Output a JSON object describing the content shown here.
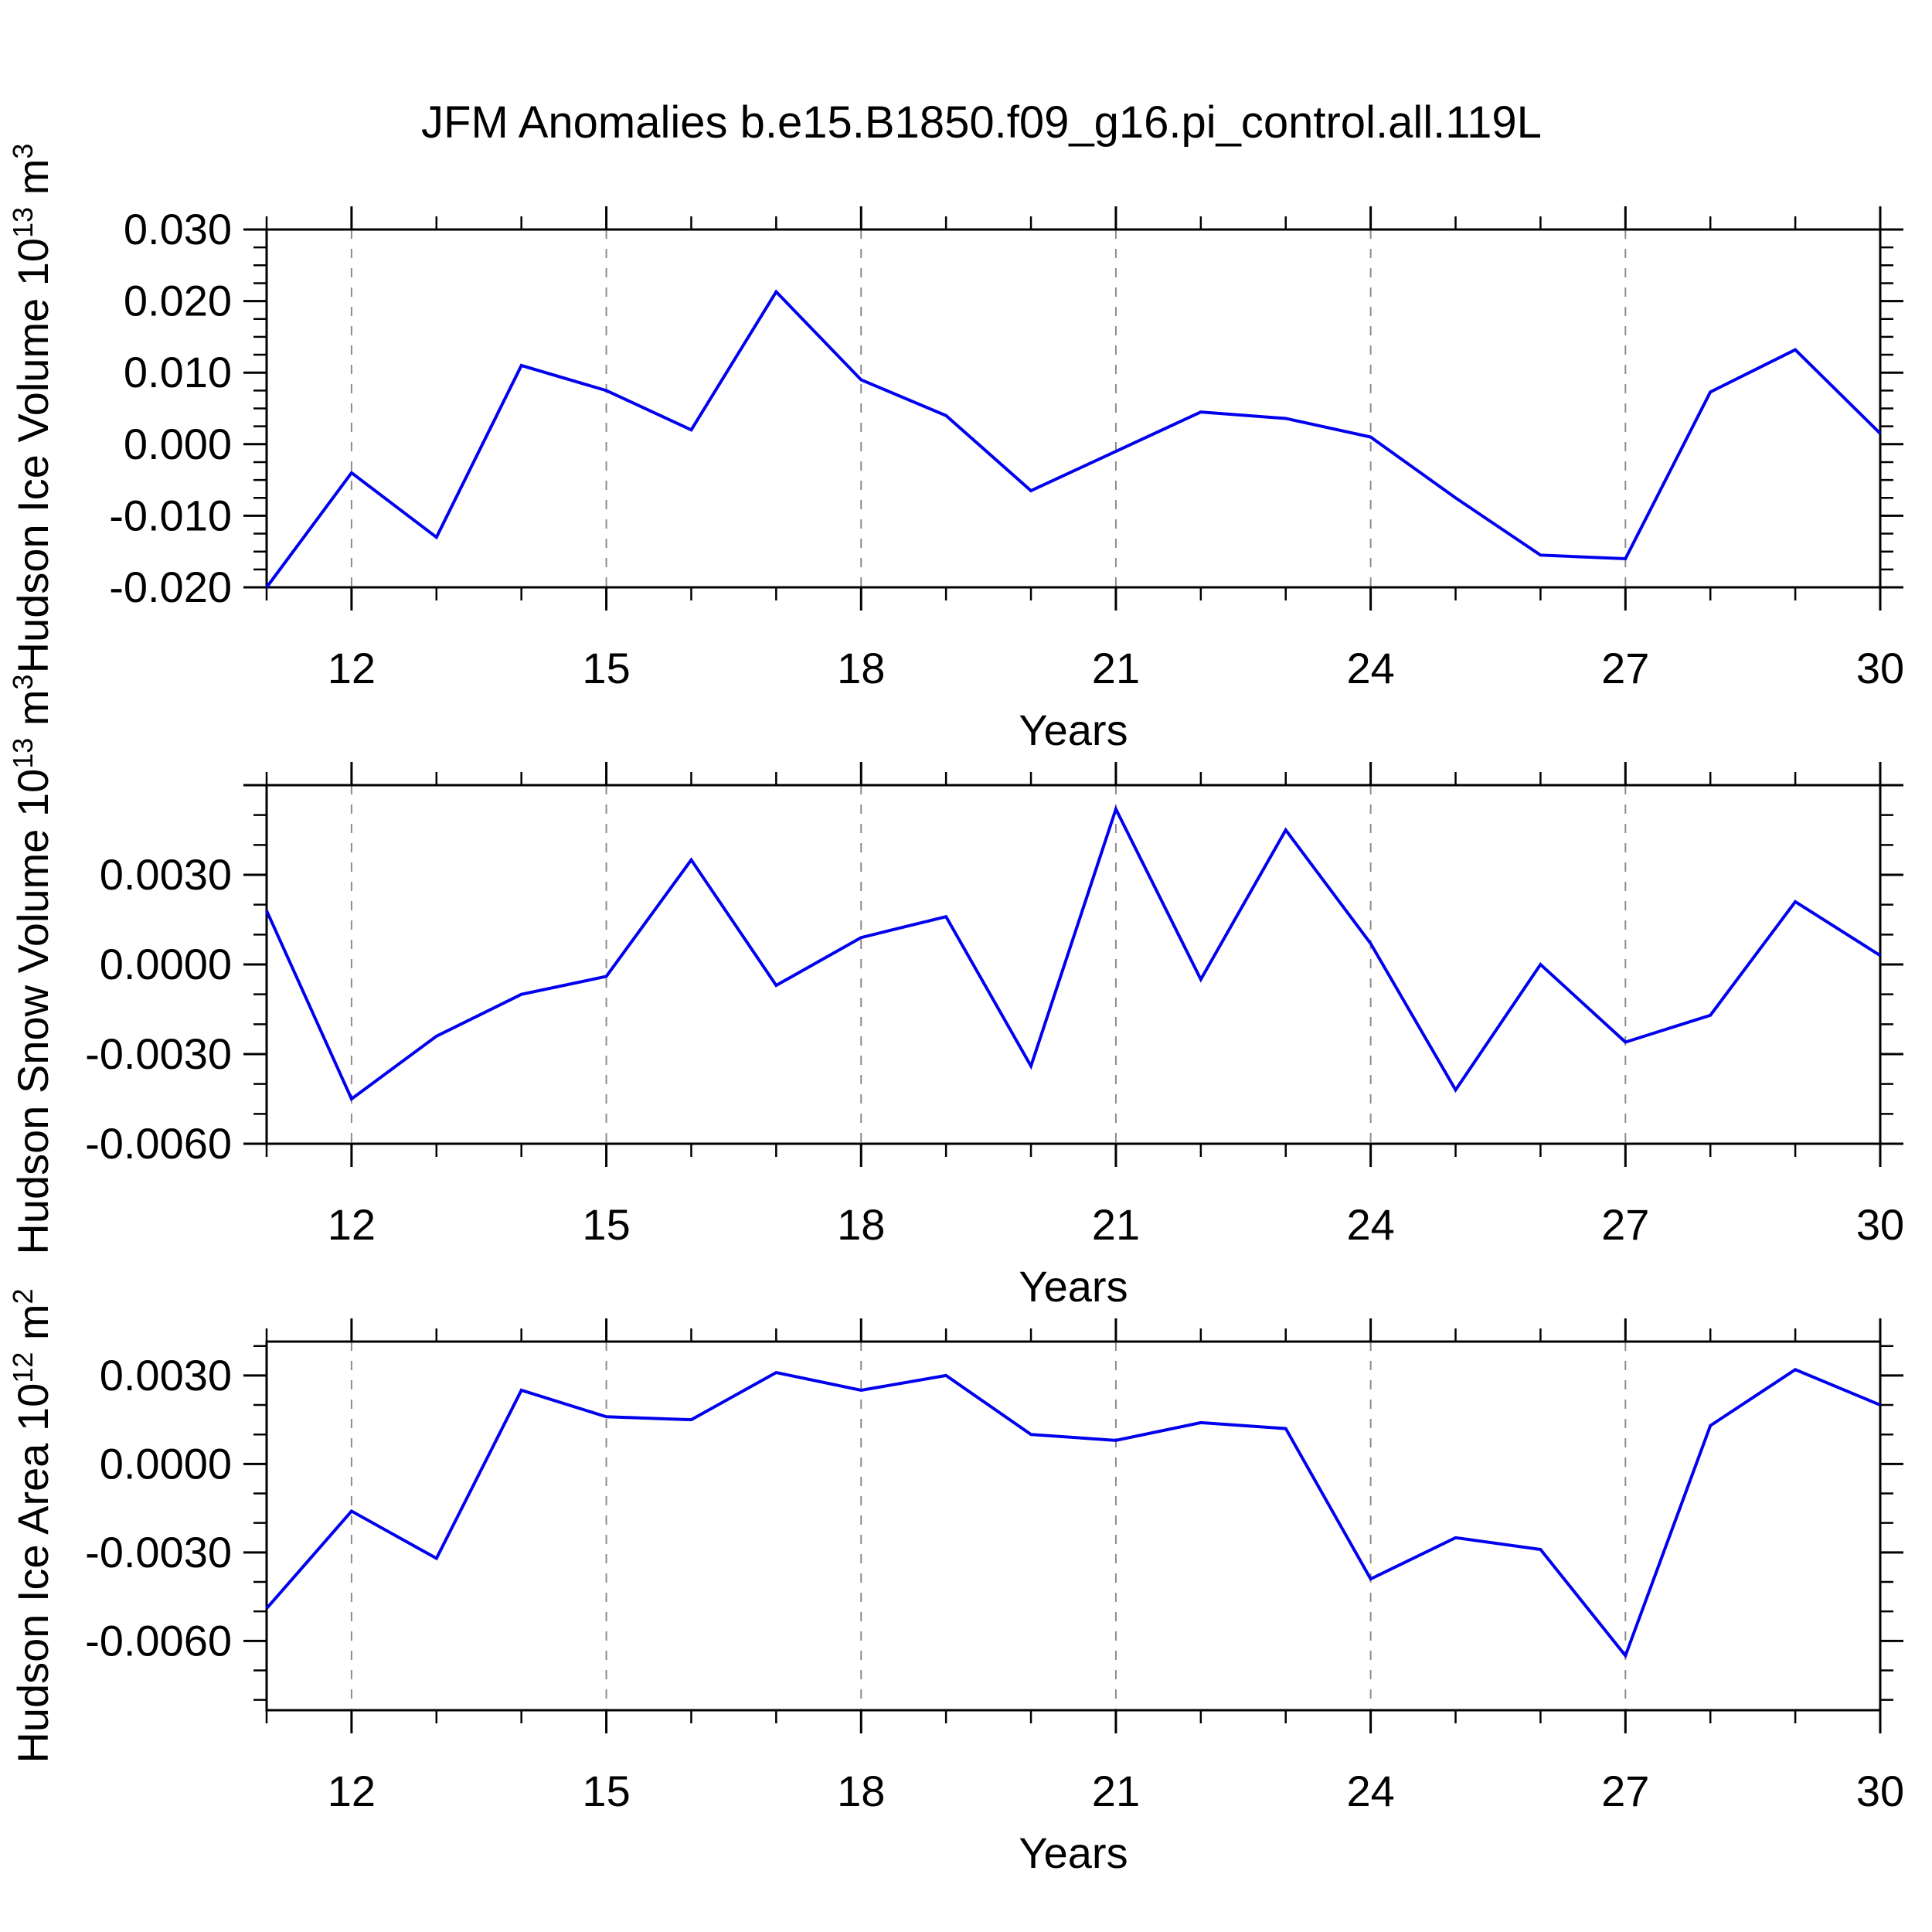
{
  "title": "JFM Anomalies b.e15.B1850.f09_g16.pi_control.all.119L",
  "colors": {
    "line": "#0000ee",
    "grid": "#8c8c8c",
    "axis": "#000000",
    "text": "#000000",
    "background": "#ffffff"
  },
  "chart_data": [
    {
      "type": "line",
      "name": "hudson-ice-volume",
      "ylabel_parts": [
        {
          "t": "Hudson Ice Volume 10"
        },
        {
          "t": "13",
          "sup": true
        },
        {
          "t": " m"
        },
        {
          "t": "3",
          "sup": true
        }
      ],
      "xlabel": "Years",
      "x": [
        11,
        12,
        13,
        14,
        15,
        16,
        17,
        18,
        19,
        20,
        21,
        22,
        23,
        24,
        25,
        26,
        27,
        28,
        29,
        30
      ],
      "values": [
        -0.02,
        -0.004,
        -0.013,
        0.011,
        0.0075,
        0.002,
        0.0213,
        0.009,
        0.004,
        -0.0065,
        -0.001,
        0.0045,
        0.0036,
        0.001,
        -0.0075,
        -0.0155,
        -0.016,
        0.0073,
        0.0132,
        0.0015
      ],
      "xlim": [
        11,
        30
      ],
      "ylim": [
        -0.02,
        0.03
      ],
      "ymajor_step": 0.01,
      "yminor_step": 0.0025,
      "ytick_labeled": [
        {
          "v": 0.03,
          "label": "0.030"
        },
        {
          "v": 0.02,
          "label": "0.020"
        },
        {
          "v": 0.01,
          "label": "0.010"
        },
        {
          "v": 0.0,
          "label": "0.000"
        },
        {
          "v": -0.01,
          "label": "-0.010"
        },
        {
          "v": -0.02,
          "label": "-0.020"
        }
      ],
      "xtick_major": [
        12,
        15,
        18,
        21,
        24,
        27,
        30
      ],
      "grid_years": [
        12,
        15,
        18,
        21,
        24,
        27
      ],
      "grid_on": true,
      "legend": "none"
    },
    {
      "type": "line",
      "name": "hudson-snow-volume",
      "ylabel_parts": [
        {
          "t": "Hudson Snow Volume 10"
        },
        {
          "t": "13",
          "sup": true
        },
        {
          "t": " m"
        },
        {
          "t": "3",
          "sup": true
        }
      ],
      "xlabel": "Years",
      "x": [
        11,
        12,
        13,
        14,
        15,
        16,
        17,
        18,
        19,
        20,
        21,
        22,
        23,
        24,
        25,
        26,
        27,
        28,
        29,
        30
      ],
      "values": [
        0.0018,
        -0.0045,
        -0.0024,
        -0.001,
        -0.0004,
        0.0035,
        -0.0007,
        0.0009,
        0.0016,
        -0.0034,
        0.0052,
        -0.0005,
        0.0045,
        0.0007,
        -0.0042,
        0.0,
        -0.0026,
        -0.0017,
        0.0021,
        0.0003
      ],
      "xlim": [
        11,
        30
      ],
      "ylim": [
        -0.006,
        0.006
      ],
      "ymajor_step": 0.003,
      "yminor_step": 0.001,
      "ytick_labeled": [
        {
          "v": 0.003,
          "label": "0.0030"
        },
        {
          "v": 0.0,
          "label": "0.0000"
        },
        {
          "v": -0.003,
          "label": "-0.0030"
        },
        {
          "v": -0.006,
          "label": "-0.0060"
        }
      ],
      "xtick_major": [
        12,
        15,
        18,
        21,
        24,
        27,
        30
      ],
      "grid_years": [
        12,
        15,
        18,
        21,
        24,
        27
      ],
      "grid_on": true,
      "legend": "none"
    },
    {
      "type": "line",
      "name": "hudson-ice-area",
      "ylabel_parts": [
        {
          "t": "Hudson Ice Area 10"
        },
        {
          "t": "12",
          "sup": true
        },
        {
          "t": " m"
        },
        {
          "t": "2",
          "sup": true
        }
      ],
      "xlabel": "Years",
      "x": [
        11,
        12,
        13,
        14,
        15,
        16,
        17,
        18,
        19,
        20,
        21,
        22,
        23,
        24,
        25,
        26,
        27,
        28,
        29,
        30
      ],
      "values": [
        -0.0049,
        -0.0016,
        -0.0032,
        0.0025,
        0.0016,
        0.0015,
        0.0031,
        0.0025,
        0.003,
        0.001,
        0.0008,
        0.0014,
        0.0012,
        -0.0039,
        -0.0025,
        -0.0029,
        -0.0065,
        0.0013,
        0.0032,
        0.002
      ],
      "xlim": [
        11,
        30
      ],
      "ylim": [
        -0.00835,
        0.00415
      ],
      "ymajor_step": 0.003,
      "yminor_step": 0.001,
      "ytick_labeled": [
        {
          "v": 0.003,
          "label": "0.0030"
        },
        {
          "v": 0.0,
          "label": "0.0000"
        },
        {
          "v": -0.003,
          "label": "-0.0030"
        },
        {
          "v": -0.006,
          "label": "-0.0060"
        }
      ],
      "xtick_major": [
        12,
        15,
        18,
        21,
        24,
        27,
        30
      ],
      "grid_years": [
        12,
        15,
        18,
        21,
        24,
        27
      ],
      "grid_on": true,
      "legend": "none"
    }
  ]
}
